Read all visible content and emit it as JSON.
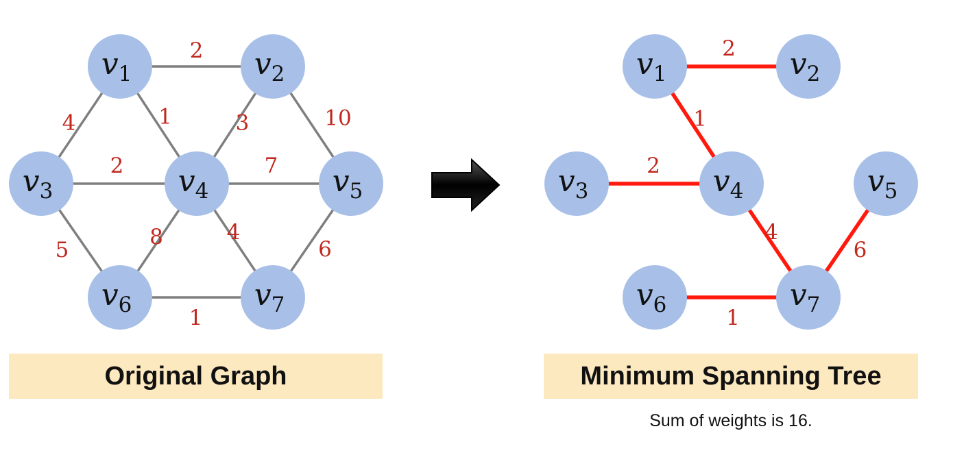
{
  "colors": {
    "node_fill": "#a8c0e8",
    "original_edge": "#7f7f7f",
    "mst_edge": "#ff1a0d",
    "weight_text": "#c0281e",
    "caption_bg": "#fde9bf",
    "arrow": "#000000"
  },
  "original_graph": {
    "caption": "Original Graph",
    "nodes": [
      {
        "id": "v1",
        "name": "v",
        "sub": "1"
      },
      {
        "id": "v2",
        "name": "v",
        "sub": "2"
      },
      {
        "id": "v3",
        "name": "v",
        "sub": "3"
      },
      {
        "id": "v4",
        "name": "v",
        "sub": "4"
      },
      {
        "id": "v5",
        "name": "v",
        "sub": "5"
      },
      {
        "id": "v6",
        "name": "v",
        "sub": "6"
      },
      {
        "id": "v7",
        "name": "v",
        "sub": "7"
      }
    ],
    "edges": [
      {
        "from": "v1",
        "to": "v2",
        "weight": "2"
      },
      {
        "from": "v1",
        "to": "v3",
        "weight": "4"
      },
      {
        "from": "v1",
        "to": "v4",
        "weight": "1"
      },
      {
        "from": "v2",
        "to": "v4",
        "weight": "3"
      },
      {
        "from": "v2",
        "to": "v5",
        "weight": "10"
      },
      {
        "from": "v3",
        "to": "v4",
        "weight": "2"
      },
      {
        "from": "v4",
        "to": "v5",
        "weight": "7"
      },
      {
        "from": "v3",
        "to": "v6",
        "weight": "5"
      },
      {
        "from": "v4",
        "to": "v6",
        "weight": "8"
      },
      {
        "from": "v4",
        "to": "v7",
        "weight": "4"
      },
      {
        "from": "v5",
        "to": "v7",
        "weight": "6"
      },
      {
        "from": "v6",
        "to": "v7",
        "weight": "1"
      }
    ]
  },
  "transform_arrow": "arrow-right-icon",
  "mst": {
    "caption": "Minimum Spanning Tree",
    "note": "Sum of weights is 16.",
    "nodes": [
      {
        "id": "v1",
        "name": "v",
        "sub": "1"
      },
      {
        "id": "v2",
        "name": "v",
        "sub": "2"
      },
      {
        "id": "v3",
        "name": "v",
        "sub": "3"
      },
      {
        "id": "v4",
        "name": "v",
        "sub": "4"
      },
      {
        "id": "v5",
        "name": "v",
        "sub": "5"
      },
      {
        "id": "v6",
        "name": "v",
        "sub": "6"
      },
      {
        "id": "v7",
        "name": "v",
        "sub": "7"
      }
    ],
    "edges": [
      {
        "from": "v1",
        "to": "v2",
        "weight": "2"
      },
      {
        "from": "v1",
        "to": "v4",
        "weight": "1"
      },
      {
        "from": "v3",
        "to": "v4",
        "weight": "2"
      },
      {
        "from": "v4",
        "to": "v7",
        "weight": "4"
      },
      {
        "from": "v5",
        "to": "v7",
        "weight": "6"
      },
      {
        "from": "v6",
        "to": "v7",
        "weight": "1"
      }
    ]
  }
}
